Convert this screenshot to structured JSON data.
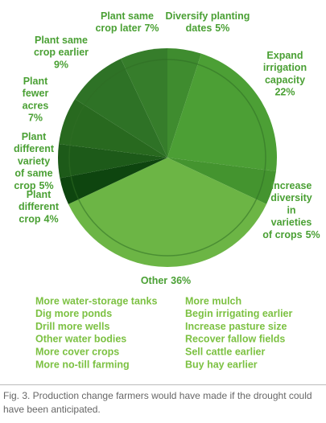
{
  "chart_data": {
    "type": "pie",
    "categories": [
      "Diversify planting dates",
      "Expand irrigation capacity",
      "Increase diversity in varieties of crops",
      "Other",
      "Plant different crop",
      "Plant different variety of same crop",
      "Plant fewer acres",
      "Plant same crop earlier",
      "Plant same crop later"
    ],
    "values": [
      5,
      22,
      5,
      36,
      4,
      5,
      7,
      9,
      7
    ],
    "value_labels": [
      "5%",
      "22%",
      "5%",
      "36%",
      "4%",
      "5%",
      "7%",
      "9%",
      "7%"
    ],
    "colors": [
      "#3f8c2f",
      "#4c9f35",
      "#44942f",
      "#6cb545",
      "#0e450f",
      "#1d5a19",
      "#28691f",
      "#2e7226",
      "#367d2b"
    ],
    "other_items": [
      "More water-storage tanks",
      "Dig more ponds",
      "Drill more wells",
      "Other water bodies",
      "More cover crops",
      "More no-till farming",
      "More mulch",
      "Begin irrigating earlier",
      "Increase pasture size",
      "Recover fallow fields",
      "Sell cattle earlier",
      "Buy hay earlier"
    ],
    "caption": "Fig. 3. Production change farmers would have made if the drought could have been anticipated."
  }
}
